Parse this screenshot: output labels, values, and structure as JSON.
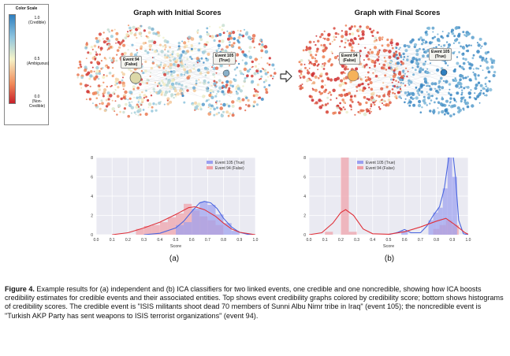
{
  "color_scale": {
    "title": "Color Scale",
    "top_value": "1.0",
    "top_label": "(Credible)",
    "mid_value": "0.5",
    "mid_label": "(Ambiguous)",
    "bottom_value": "0.0",
    "bottom_label": "(Non-Credible)"
  },
  "graphs": {
    "initial_title": "Graph with Initial Scores",
    "final_title": "Graph with Final Scores",
    "event94_line1": "Event 94",
    "event94_line2": "(False)",
    "event105_line1": "Event 105",
    "event105_line2": "(True)"
  },
  "colors": {
    "blue": "#4a66e0",
    "red": "#e0313a",
    "blue_fill": "#9b9ff0",
    "red_fill": "#f0a0a8",
    "panel_bg": "#eaeaf2"
  },
  "panel_tags": [
    "(a)",
    "(b)"
  ],
  "chart_data": [
    {
      "type": "bar",
      "panel": "(a)",
      "xlabel": "Score",
      "xlim": [
        0.0,
        1.0
      ],
      "ylim": [
        0,
        8
      ],
      "xticks": [
        "0.0",
        "0.1",
        "0.2",
        "0.3",
        "0.4",
        "0.5",
        "0.6",
        "0.7",
        "0.8",
        "0.9",
        "1.0"
      ],
      "yticks": [
        "0",
        "2",
        "4",
        "6",
        "8"
      ],
      "legend": "top-right",
      "series": [
        {
          "name": "Event 105 (True)",
          "color": "blue",
          "bins": [
            [
              0.5,
              0.55,
              1.0
            ],
            [
              0.55,
              0.6,
              1.3
            ],
            [
              0.6,
              0.65,
              2.7
            ],
            [
              0.65,
              0.7,
              3.4
            ],
            [
              0.7,
              0.75,
              3.1
            ],
            [
              0.75,
              0.8,
              2.1
            ],
            [
              0.8,
              0.85,
              1.2
            ],
            [
              0.85,
              0.9,
              0.4
            ]
          ],
          "kde": [
            [
              0.3,
              0.0
            ],
            [
              0.4,
              0.15
            ],
            [
              0.5,
              0.7
            ],
            [
              0.55,
              1.4
            ],
            [
              0.6,
              2.4
            ],
            [
              0.65,
              3.3
            ],
            [
              0.68,
              3.45
            ],
            [
              0.72,
              3.3
            ],
            [
              0.76,
              2.7
            ],
            [
              0.8,
              1.7
            ],
            [
              0.85,
              0.8
            ],
            [
              0.9,
              0.25
            ],
            [
              0.95,
              0.05
            ],
            [
              1.0,
              0.0
            ]
          ]
        },
        {
          "name": "Event 94 (False)",
          "color": "red",
          "bins": [
            [
              0.25,
              0.3,
              0.6
            ],
            [
              0.3,
              0.35,
              0.9
            ],
            [
              0.35,
              0.4,
              1.0
            ],
            [
              0.4,
              0.45,
              1.3
            ],
            [
              0.45,
              0.5,
              1.8
            ],
            [
              0.5,
              0.55,
              2.2
            ],
            [
              0.55,
              0.6,
              3.2
            ],
            [
              0.6,
              0.65,
              2.5
            ],
            [
              0.65,
              0.7,
              1.9
            ],
            [
              0.7,
              0.75,
              1.5
            ],
            [
              0.75,
              0.8,
              1.0
            ]
          ],
          "kde": [
            [
              0.1,
              0.0
            ],
            [
              0.2,
              0.2
            ],
            [
              0.3,
              0.7
            ],
            [
              0.4,
              1.3
            ],
            [
              0.5,
              2.1
            ],
            [
              0.58,
              2.8
            ],
            [
              0.62,
              2.9
            ],
            [
              0.68,
              2.6
            ],
            [
              0.75,
              1.9
            ],
            [
              0.8,
              1.2
            ],
            [
              0.85,
              0.6
            ],
            [
              0.9,
              0.25
            ],
            [
              1.0,
              0.0
            ]
          ]
        }
      ]
    },
    {
      "type": "bar",
      "panel": "(b)",
      "xlabel": "Score",
      "xlim": [
        0.0,
        1.0
      ],
      "ylim": [
        0,
        8
      ],
      "xticks": [
        "0.0",
        "0.1",
        "0.2",
        "0.3",
        "0.4",
        "0.5",
        "0.6",
        "0.7",
        "0.8",
        "0.9",
        "1.0"
      ],
      "yticks": [
        "0",
        "2",
        "4",
        "6",
        "8"
      ],
      "legend": "top-center",
      "series": [
        {
          "name": "Event 105 (True)",
          "color": "blue",
          "bins": [
            [
              0.58,
              0.62,
              0.4
            ],
            [
              0.75,
              0.78,
              1.5
            ],
            [
              0.78,
              0.81,
              2.3
            ],
            [
              0.81,
              0.84,
              2.8
            ],
            [
              0.84,
              0.87,
              4.8
            ],
            [
              0.87,
              0.9,
              8.2
            ],
            [
              0.9,
              0.93,
              6.0
            ]
          ],
          "kde": [
            [
              0.5,
              0.0
            ],
            [
              0.56,
              0.25
            ],
            [
              0.6,
              0.55
            ],
            [
              0.64,
              0.2
            ],
            [
              0.7,
              0.2
            ],
            [
              0.74,
              0.9
            ],
            [
              0.78,
              2.0
            ],
            [
              0.82,
              2.9
            ],
            [
              0.85,
              4.8
            ],
            [
              0.88,
              8.3
            ],
            [
              0.9,
              9.0
            ],
            [
              0.92,
              6.0
            ],
            [
              0.94,
              1.5
            ],
            [
              0.97,
              0.1
            ],
            [
              1.0,
              0.0
            ]
          ]
        },
        {
          "name": "Event 94 (False)",
          "color": "red",
          "bins": [
            [
              0.2,
              0.25,
              9.0
            ],
            [
              0.25,
              0.3,
              0.3
            ],
            [
              0.1,
              0.15,
              0.3
            ],
            [
              0.78,
              0.82,
              0.6
            ],
            [
              0.82,
              0.86,
              1.0
            ],
            [
              0.86,
              0.9,
              1.5
            ],
            [
              0.9,
              0.94,
              1.0
            ]
          ],
          "kde": [
            [
              0.0,
              0.0
            ],
            [
              0.08,
              0.2
            ],
            [
              0.15,
              1.2
            ],
            [
              0.2,
              2.3
            ],
            [
              0.23,
              2.6
            ],
            [
              0.28,
              2.0
            ],
            [
              0.34,
              0.6
            ],
            [
              0.4,
              0.1
            ],
            [
              0.5,
              0.05
            ],
            [
              0.6,
              0.3
            ],
            [
              0.7,
              0.8
            ],
            [
              0.8,
              1.4
            ],
            [
              0.86,
              1.7
            ],
            [
              0.92,
              1.0
            ],
            [
              0.98,
              0.2
            ],
            [
              1.0,
              0.05
            ]
          ]
        }
      ]
    }
  ],
  "caption": {
    "label": "Figure 4.",
    "text": "  Example results for (a) independent and (b) ICA classifiers for two linked events, one credible and one noncredible, showing how ICA boosts credibility estimates for credible events and their associated entities. Top shows event credibility graphs colored by credibility score; bottom shows histograms of credibility scores. The credible event is \"ISIS militants shoot dead 70 members of Sunni Albu Nimr tribe in Iraq\" (event 105); the noncredible event is \"Turkish AKP Party has sent weapons to ISIS terrorist organizations\" (event 94)."
  }
}
